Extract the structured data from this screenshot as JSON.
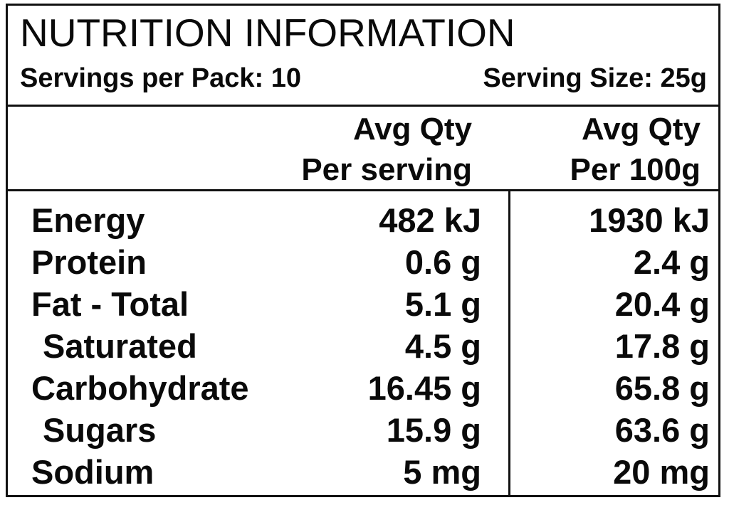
{
  "panel": {
    "title": "NUTRITION INFORMATION",
    "servings_per_pack": "Servings per Pack: 10",
    "serving_size": "Serving Size: 25g"
  },
  "columns": {
    "per_serving": {
      "line1": "Avg Qty",
      "line2": "Per serving"
    },
    "per_100g": {
      "line1": "Avg Qty",
      "line2": "Per 100g"
    }
  },
  "rows": [
    {
      "label": "Energy",
      "per_serving": "482 kJ",
      "per_100g": "1930 kJ"
    },
    {
      "label": "Protein",
      "per_serving": "0.6 g",
      "per_100g": "2.4 g"
    },
    {
      "label": "Fat - Total",
      "per_serving": "5.1 g",
      "per_100g": "20.4 g"
    },
    {
      "label": "Saturated",
      "per_serving": "4.5 g",
      "per_100g": "17.8 g"
    },
    {
      "label": "Carbohydrate",
      "per_serving": "16.45 g",
      "per_100g": "65.8 g"
    },
    {
      "label": "Sugars",
      "per_serving": "15.9 g",
      "per_100g": "63.6 g"
    },
    {
      "label": "Sodium",
      "per_serving": "5 mg",
      "per_100g": "20 mg"
    }
  ]
}
